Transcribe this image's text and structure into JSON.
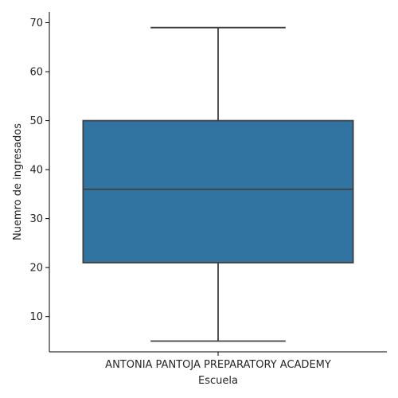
{
  "chart_data": {
    "type": "box",
    "title": "",
    "xlabel": "Escuela",
    "ylabel": "Nuemro de ingresados",
    "categories": [
      "ANTONIA PANTOJA PREPARATORY ACADEMY"
    ],
    "boxes": [
      {
        "category": "ANTONIA PANTOJA PREPARATORY ACADEMY",
        "whisker_low": 5,
        "q1": 21,
        "median": 36,
        "q3": 50,
        "whisker_high": 69
      }
    ],
    "ylim": [
      2.8,
      72.2
    ],
    "yticks": [
      10,
      20,
      30,
      40,
      50,
      60,
      70
    ],
    "grid": false,
    "legend": "none",
    "colors": {
      "box_fill": "#3274a1",
      "line": "#3f3f3f",
      "axis": "#000000"
    }
  }
}
